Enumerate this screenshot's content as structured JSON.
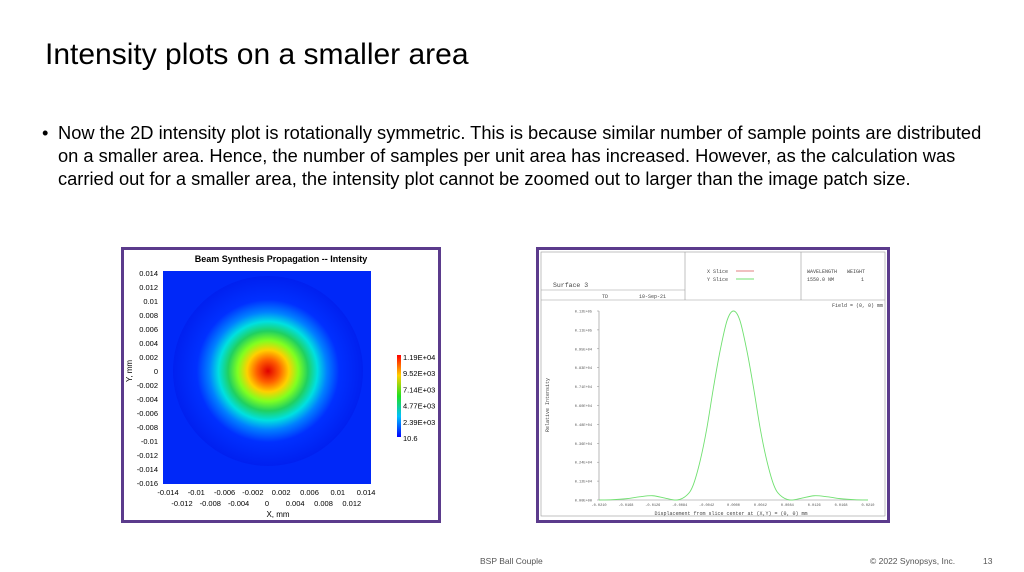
{
  "slide": {
    "title": "Intensity plots on a smaller area",
    "bullet": "Now the 2D intensity plot is rotationally symmetric. This is because similar number of sample points are distributed on a smaller area. Hence, the number of samples per unit area has increased. However, as the calculation was carried out for a smaller area, the intensity plot cannot be zoomed out to larger than the image patch size.",
    "footer_center": "BSP Ball Couple",
    "footer_copyright": "© 2022 Synopsys, Inc.",
    "page_number": "13",
    "frame_color": "#5b3b8c"
  },
  "chart_data": [
    {
      "type": "heatmap",
      "title": "Beam Synthesis Propagation -- Intensity",
      "xlabel": "X, mm",
      "ylabel": "Y, mm",
      "xlim": [
        -0.015,
        0.015
      ],
      "ylim": [
        -0.016,
        0.014
      ],
      "x_ticks_top": [
        "-0.014",
        "-0.01",
        "-0.006",
        "-0.002",
        "0.002",
        "0.006",
        "0.01",
        "0.014"
      ],
      "x_ticks_bottom": [
        "-0.012",
        "-0.008",
        "-0.004",
        "0",
        "0.004",
        "0.008",
        "0.012"
      ],
      "y_ticks": [
        "0.014",
        "0.012",
        "0.01",
        "0.008",
        "0.006",
        "0.004",
        "0.002",
        "0",
        "-0.002",
        "-0.004",
        "-0.006",
        "-0.008",
        "-0.01",
        "-0.012",
        "-0.014",
        "-0.016"
      ],
      "colorbar_labels": [
        "1.19E+04",
        "9.52E+03",
        "7.14E+03",
        "4.77E+03",
        "2.39E+03",
        "10.6"
      ],
      "colormap": "jet",
      "peak_center": [
        0,
        0
      ]
    },
    {
      "type": "line",
      "header": {
        "surface": "Surface 3",
        "initials": "TD",
        "date": "10-Sep-21",
        "legend": [
          {
            "name": "X Slice",
            "color": "#e08080"
          },
          {
            "name": "Y Slice",
            "color": "#70e070"
          }
        ],
        "wavelength_label": "WAVELENGTH",
        "weight_label": "WEIGHT",
        "wavelength": "1550.0 NM",
        "weight": "1",
        "field": "Field = (0, 0) mm"
      },
      "xlabel": "Displacement from slice center at (X,Y) = (0, 0) mm",
      "ylabel": "Relative Intensity",
      "xlim": [
        -0.021,
        0.021
      ],
      "ylim": [
        0,
        12000
      ],
      "x_ticks": [
        "-0.0210",
        "-0.0168",
        "-0.0126",
        "-0.0084",
        "-0.0042",
        "0.0000",
        "0.0042",
        "0.0084",
        "0.0126",
        "0.0168",
        "0.0210"
      ],
      "y_ticks": [
        "0.00E+00",
        "0.12E+04",
        "0.24E+04",
        "0.36E+04",
        "0.48E+04",
        "0.60E+04",
        "0.71E+04",
        "0.83E+04",
        "0.95E+04",
        "0.11E+05",
        "0.12E+05"
      ],
      "series": [
        {
          "name": "Y Slice",
          "color": "#70e070",
          "x": [
            -0.021,
            -0.0189,
            -0.0168,
            -0.0147,
            -0.0126,
            -0.0105,
            -0.0088,
            -0.0073,
            -0.0063,
            -0.0052,
            -0.0042,
            -0.0031,
            -0.0021,
            -0.001,
            0,
            0.001,
            0.0021,
            0.0031,
            0.0042,
            0.0052,
            0.0063,
            0.0073,
            0.0088,
            0.0105,
            0.0126,
            0.0147,
            0.0168,
            0.0189,
            0.021
          ],
          "y": [
            0,
            20,
            80,
            200,
            270,
            100,
            0,
            300,
            940,
            2500,
            4470,
            7200,
            9460,
            11400,
            12000,
            11400,
            9460,
            7200,
            4470,
            2500,
            940,
            300,
            0,
            100,
            270,
            200,
            80,
            20,
            0
          ]
        }
      ]
    }
  ]
}
